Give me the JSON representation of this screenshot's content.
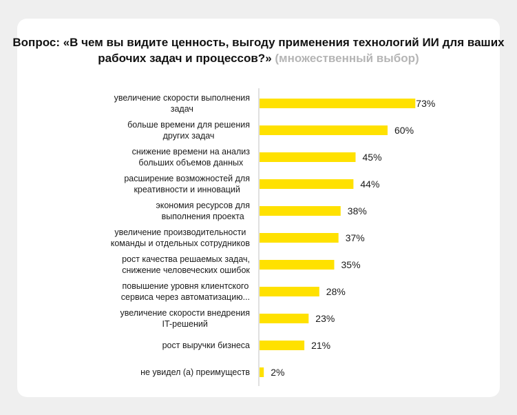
{
  "chart_data": {
    "type": "bar",
    "orientation": "horizontal",
    "title": "Вопрос: «В чем вы видите ценность, выгоду применения технологий ИИ для ваших рабочих задач и процессов?»",
    "subtitle": "(множественный выбор)",
    "categories": [
      [
        "увеличение скорости выполнения",
        "задач"
      ],
      [
        "больше времени для решения",
        "других задач"
      ],
      [
        "снижение времени на анализ",
        "больших объемов данных"
      ],
      [
        "расширение возможностей для",
        "креативности и инноваций"
      ],
      [
        "экономия ресурсов для",
        "выполнения проекта"
      ],
      [
        "увеличение производительности",
        "команды и отдельных сотрудников"
      ],
      [
        "рост качества решаемых задач,",
        "снижение человеческих ошибок"
      ],
      [
        "повышение уровня клиентского",
        "сервиса через автоматизацию..."
      ],
      [
        "увеличение скорости внедрения",
        "IT-решений"
      ],
      [
        "рост выручки бизнеса"
      ],
      [
        "не увидел (а) преимуществ"
      ]
    ],
    "values": [
      73,
      60,
      45,
      44,
      38,
      37,
      35,
      28,
      23,
      21,
      2
    ],
    "value_labels": [
      "73%",
      "60%",
      "45%",
      "44%",
      "38%",
      "37%",
      "35%",
      "28%",
      "23%",
      "21%",
      "2%"
    ],
    "unit": "%",
    "xlim": [
      0,
      100
    ],
    "grid": false,
    "bar_color": "#ffe100"
  }
}
